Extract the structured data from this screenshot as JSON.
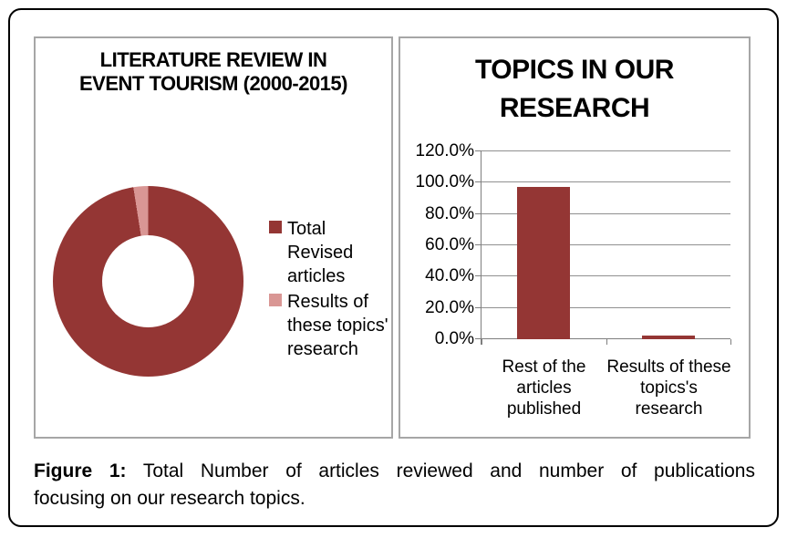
{
  "caption": {
    "label": "Figure 1:",
    "line1_rest": "Total Number of articles reviewed and number of publications",
    "line2": "focusing on our research topics."
  },
  "colors": {
    "dark_red": "#943634",
    "pink": "#D99694",
    "panel_border": "#A6A6A6",
    "gridline": "#909090",
    "axis": "#7F7F7F",
    "outer_border": "#000000"
  },
  "chart_data": [
    {
      "type": "pie",
      "subtype": "doughnut",
      "title": "LITERATURE REVIEW IN EVENT TOURISM (2000-2015)",
      "labels": [
        "Total Revised articles",
        "Results of these topics' research"
      ],
      "values": [
        97.5,
        2.5
      ],
      "colors": [
        "#943634",
        "#D99694"
      ],
      "hole_ratio": 0.48,
      "legend_position": "right",
      "start_angle_deg": 0
    },
    {
      "type": "bar",
      "title": "TOPICS IN OUR RESEARCH",
      "categories": [
        "Rest of the articles published",
        "Results of these topics's research"
      ],
      "values": [
        97.5,
        2.5
      ],
      "value_unit": "%",
      "bar_color": "#943634",
      "ylim": [
        0,
        120
      ],
      "yticks": [
        "0.0%",
        "20.0%",
        "40.0%",
        "60.0%",
        "80.0%",
        "100.0%",
        "120.0%"
      ],
      "grid": true,
      "legend_position": "none"
    }
  ]
}
